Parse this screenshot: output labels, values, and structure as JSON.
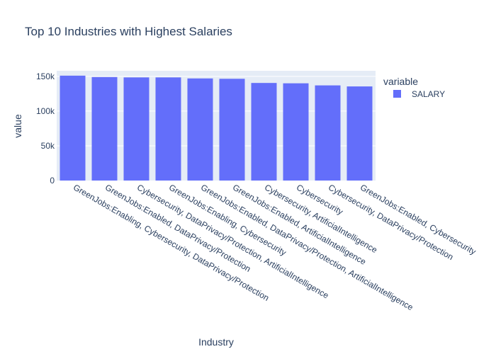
{
  "chart_data": {
    "type": "bar",
    "title": "Top 10 Industries with Highest Salaries",
    "xlabel": "Industry",
    "ylabel": "value",
    "categories": [
      "GreenJobs:Enabling, Cybersecurity, DataPrivacy/Protection",
      "GreenJobs:Enabled, DataPrivacy/Protection",
      "Cybersecurity, DataPrivacy/Protection, ArtificialIntelligence",
      "GreenJobs:Enabling, Cybersecurity",
      "GreenJobs:Enabled, DataPrivacy/Protection, ArtificialIntelligence",
      "GreenJobs:Enabled, ArtificialIntelligence",
      "Cybersecurity, ArtificialIntelligence",
      "Cybersecurity",
      "Cybersecurity, DataPrivacy/Protection",
      "GreenJobs:Enabled, Cybersecurity"
    ],
    "series": [
      {
        "name": "SALARY",
        "values": [
          151000,
          149000,
          148500,
          148500,
          147000,
          146500,
          140500,
          140000,
          137000,
          135500
        ]
      }
    ],
    "ylim": [
      0,
      158000
    ],
    "yticks": [
      0,
      50000,
      100000,
      150000
    ],
    "ytick_labels": [
      "0",
      "50k",
      "100k",
      "150k"
    ],
    "legend": {
      "title": "variable",
      "position": "right"
    },
    "grid": true
  },
  "colors": {
    "plot_bg": "#e5ecf6",
    "bar": "#636efa",
    "grid": "#ffffff",
    "text": "#2a3f5f"
  }
}
